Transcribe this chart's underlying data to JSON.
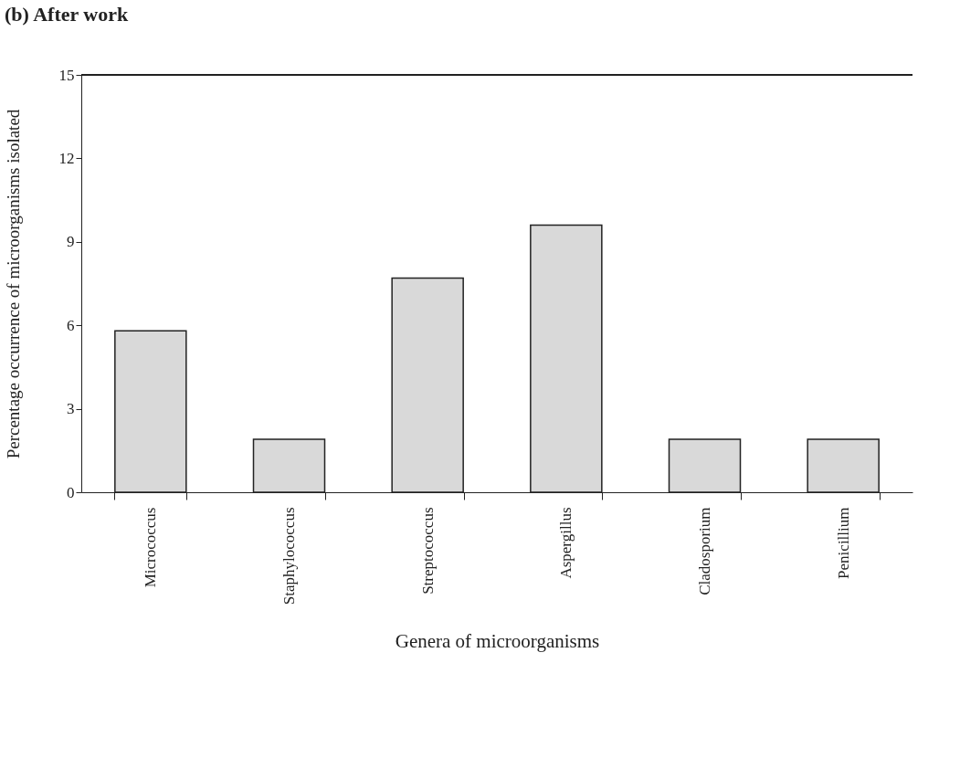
{
  "chart_data": {
    "type": "bar",
    "title": "(b) After work",
    "xlabel": "Genera of microorganisms",
    "ylabel": "Percentage occurrence of microorganisms isolated",
    "categories": [
      "Micrococcus",
      "Staphylococcus",
      "Streptococcus",
      "Aspergillus",
      "Cladosporium",
      "Penicillium"
    ],
    "values": [
      5.8,
      1.9,
      7.7,
      9.6,
      1.9,
      1.9
    ],
    "color": "#d9d9d9",
    "ylim": [
      0,
      15
    ],
    "yticks": [
      0,
      3,
      6,
      9,
      12,
      15
    ],
    "grid": false
  }
}
